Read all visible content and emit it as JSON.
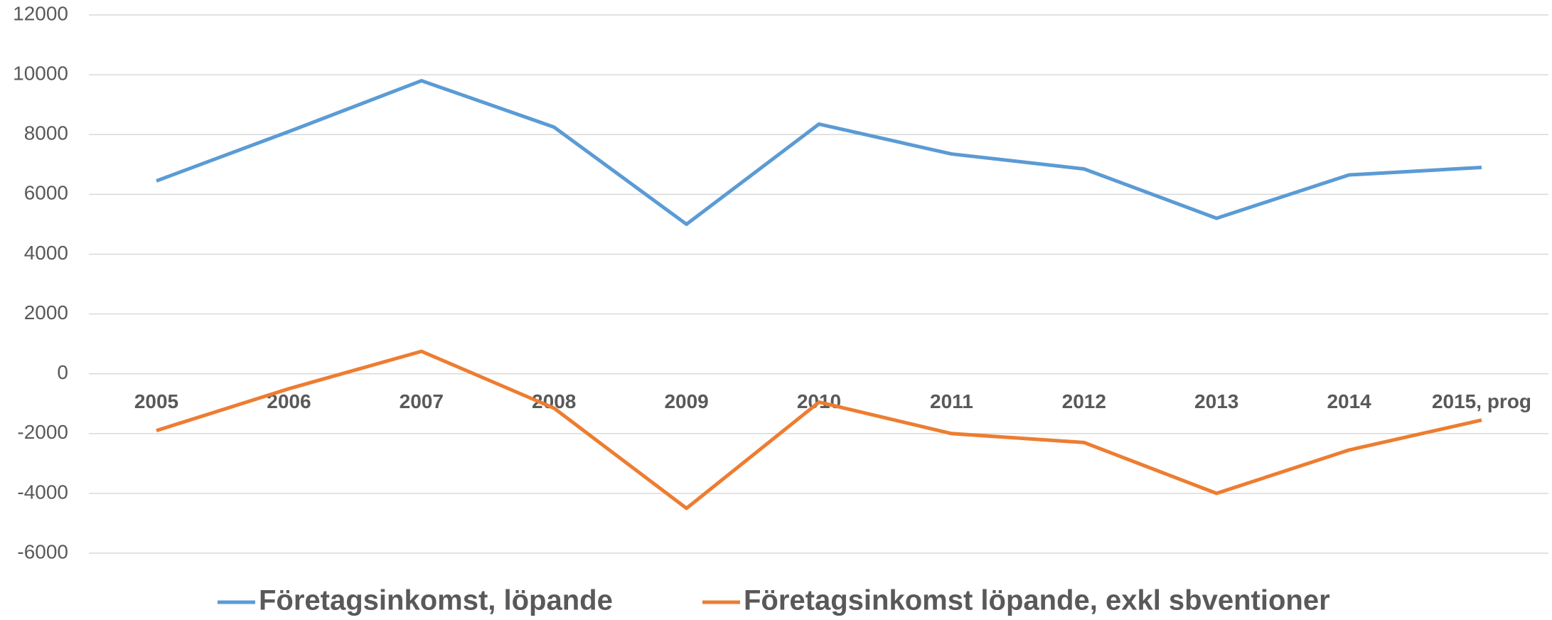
{
  "chart_data": {
    "type": "line",
    "categories": [
      "2005",
      "2006",
      "2007",
      "2008",
      "2009",
      "2010",
      "2011",
      "2012",
      "2013",
      "2014",
      "2015, prog"
    ],
    "series": [
      {
        "name": "Företagsinkomst, löpande",
        "color": "#5b9bd5",
        "values": [
          6450,
          8100,
          9800,
          8250,
          5000,
          8350,
          7350,
          6850,
          5200,
          6650,
          6900
        ]
      },
      {
        "name": "Företagsinkomst löpande, exkl sbventioner",
        "color": "#ed7d31",
        "values": [
          -1900,
          -500,
          750,
          -1150,
          -4500,
          -950,
          -2000,
          -2300,
          -4000,
          -2550,
          -1550
        ]
      }
    ],
    "ylim": [
      -6000,
      12000
    ],
    "yticks": [
      -6000,
      -4000,
      -2000,
      0,
      2000,
      4000,
      6000,
      8000,
      10000,
      12000
    ],
    "grid": true
  }
}
